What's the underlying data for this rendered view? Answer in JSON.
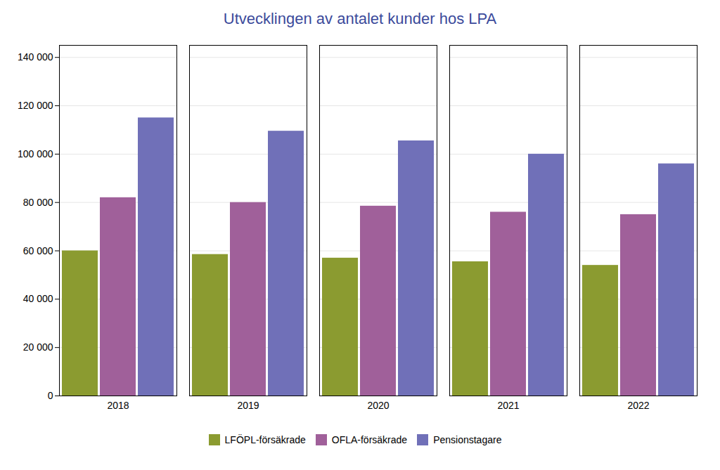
{
  "chart_data": {
    "type": "bar",
    "title": "Utvecklingen av antalet kunder hos LPA",
    "categories": [
      "2018",
      "2019",
      "2020",
      "2021",
      "2022"
    ],
    "series": [
      {
        "name": "LFÖPL-försäkrade",
        "color": "#8B9B30",
        "values": [
          60000,
          58500,
          57000,
          55500,
          54000
        ]
      },
      {
        "name": "OFLA-försäkrade",
        "color": "#A0609A",
        "values": [
          82000,
          80000,
          78500,
          76000,
          75000
        ]
      },
      {
        "name": "Pensionstagare",
        "color": "#7070B8",
        "values": [
          115000,
          109500,
          105500,
          100000,
          96000
        ]
      }
    ],
    "ylim": [
      0,
      145000
    ],
    "yticks": [
      0,
      {
        "value": 20000,
        "label": "20 000"
      },
      {
        "value": 40000,
        "label": "40 000"
      },
      {
        "value": 60000,
        "label": "60 000"
      },
      {
        "value": 80000,
        "label": "80 000"
      },
      {
        "value": 100000,
        "label": "100 000"
      },
      {
        "value": 120000,
        "label": "120 000"
      },
      {
        "value": 140000,
        "label": "140 000"
      }
    ],
    "grid": true,
    "legend": "bottom"
  }
}
